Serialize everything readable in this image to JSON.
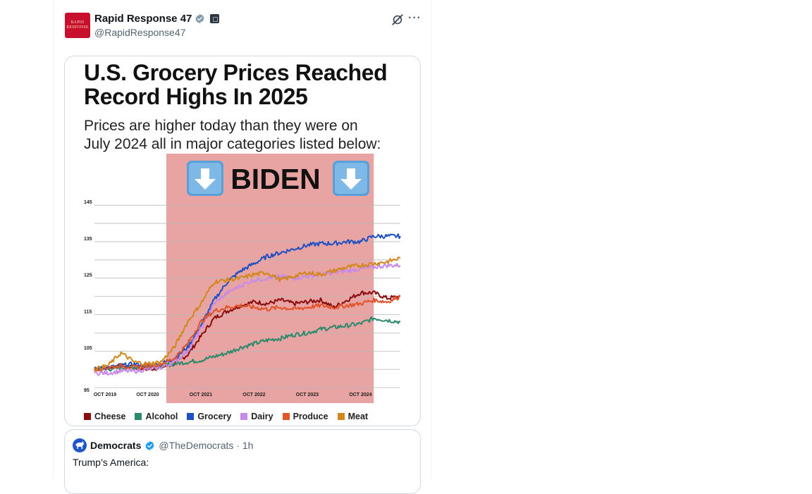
{
  "post": {
    "display_name": "Rapid Response 47",
    "handle": "@RapidResponse47",
    "avatar_text": "RAPID RESPONSE",
    "icons": [
      "verified-badge-icon",
      "government-badge-icon",
      "grok-icon",
      "more-icon"
    ]
  },
  "image": {
    "headline_line1": "U.S. Grocery Prices Reached",
    "headline_line2": "Record Highs In 2025",
    "subhead_line1": "Prices are higher today than they were on",
    "subhead_line2": "July 2024 all in major categories listed below:",
    "banner_text": "BIDEN",
    "banner_icon": "down-arrow-emoji-icon",
    "highlight_color": "#e8a3a3"
  },
  "chart_data": {
    "type": "line",
    "x_ticks": [
      "OCT 2019",
      "OCT 2020",
      "OCT 2021",
      "OCT 2022",
      "OCT 2023",
      "OCT 2024"
    ],
    "y_ticks": [
      "95",
      "105",
      "115",
      "125",
      "135",
      "145"
    ],
    "ylim": [
      95,
      146
    ],
    "xlim": [
      2019.75,
      2025.5
    ],
    "highlight_range": [
      2021.1,
      2025.0
    ],
    "grid": true,
    "legend": "bottom",
    "series": [
      {
        "name": "Cheese",
        "color": "#8b0e0e",
        "x": [
          2019.75,
          2020.0,
          2020.25,
          2020.5,
          2020.75,
          2021.0,
          2021.25,
          2021.5,
          2021.75,
          2022.0,
          2022.25,
          2022.5,
          2022.75,
          2023.0,
          2023.25,
          2023.5,
          2023.75,
          2024.0,
          2024.25,
          2024.5,
          2024.75,
          2025.0,
          2025.25,
          2025.5
        ],
        "y": [
          100,
          100.5,
          101,
          100.5,
          100,
          100.5,
          101.5,
          104,
          109,
          114,
          116,
          117.5,
          118.5,
          118,
          119,
          118,
          118.5,
          119,
          117,
          119,
          121,
          121,
          119.5,
          120
        ]
      },
      {
        "name": "Alcohol",
        "color": "#2a8a6a",
        "x": [
          2019.75,
          2020.0,
          2020.25,
          2020.5,
          2020.75,
          2021.0,
          2021.25,
          2021.5,
          2021.75,
          2022.0,
          2022.25,
          2022.5,
          2022.75,
          2023.0,
          2023.25,
          2023.5,
          2023.75,
          2024.0,
          2024.25,
          2024.5,
          2024.75,
          2025.0,
          2025.25,
          2025.5
        ],
        "y": [
          100,
          100,
          100.5,
          100.5,
          101,
          101,
          101.5,
          102,
          102.5,
          103.5,
          104.5,
          106,
          107,
          108,
          108.5,
          109.5,
          110,
          111,
          111.5,
          112,
          112.5,
          114,
          113.5,
          113
        ]
      },
      {
        "name": "Grocery",
        "color": "#1f4fc4",
        "x": [
          2019.75,
          2020.0,
          2020.25,
          2020.5,
          2020.75,
          2021.0,
          2021.25,
          2021.5,
          2021.75,
          2022.0,
          2022.25,
          2022.5,
          2022.75,
          2023.0,
          2023.25,
          2023.5,
          2023.75,
          2024.0,
          2024.25,
          2024.5,
          2024.75,
          2025.0,
          2025.25,
          2025.5
        ],
        "y": [
          100,
          100.5,
          101,
          101.5,
          101,
          101.5,
          103,
          106,
          112,
          119,
          124,
          127,
          129,
          131,
          132,
          133,
          134,
          134.5,
          134.5,
          135,
          135,
          136.5,
          136.5,
          136.5
        ]
      },
      {
        "name": "Dairy",
        "color": "#c78be6",
        "x": [
          2019.75,
          2020.0,
          2020.25,
          2020.5,
          2020.75,
          2021.0,
          2021.25,
          2021.5,
          2021.75,
          2022.0,
          2022.25,
          2022.5,
          2022.75,
          2023.0,
          2023.25,
          2023.5,
          2023.75,
          2024.0,
          2024.25,
          2024.5,
          2024.75,
          2025.0,
          2025.25,
          2025.5
        ],
        "y": [
          99,
          99,
          99.5,
          99.5,
          100,
          100.5,
          102,
          105,
          111,
          118,
          121,
          123,
          124.5,
          125,
          125.5,
          125,
          125.5,
          126,
          126.5,
          127,
          127.5,
          128,
          128.5,
          128.5
        ]
      },
      {
        "name": "Produce",
        "color": "#e0542a",
        "x": [
          2019.75,
          2020.0,
          2020.25,
          2020.5,
          2020.75,
          2021.0,
          2021.25,
          2021.5,
          2021.75,
          2022.0,
          2022.25,
          2022.5,
          2022.75,
          2023.0,
          2023.25,
          2023.5,
          2023.75,
          2024.0,
          2024.25,
          2024.5,
          2024.75,
          2025.0,
          2025.25,
          2025.5
        ],
        "y": [
          100,
          100.5,
          101,
          100.5,
          101,
          101.5,
          103,
          107,
          113,
          116,
          117,
          117.5,
          117,
          116.5,
          117,
          116.5,
          117,
          117.5,
          117,
          117.5,
          118,
          119,
          118.5,
          120
        ]
      },
      {
        "name": "Meat",
        "color": "#d2871a",
        "x": [
          2019.75,
          2020.0,
          2020.25,
          2020.5,
          2020.75,
          2021.0,
          2021.25,
          2021.5,
          2021.75,
          2022.0,
          2022.25,
          2022.5,
          2022.75,
          2023.0,
          2023.25,
          2023.5,
          2023.75,
          2024.0,
          2024.25,
          2024.5,
          2024.75,
          2025.0,
          2025.25,
          2025.5
        ],
        "y": [
          100,
          101,
          104.5,
          102,
          101.5,
          102,
          106,
          113,
          118,
          124,
          124.5,
          125,
          126,
          126.5,
          124.5,
          125.5,
          126.5,
          126,
          127,
          128,
          128.5,
          129,
          129.5,
          130.5
        ]
      }
    ]
  },
  "quote": {
    "display_name": "Democrats",
    "handle_time": "@TheDemocrats · 1h",
    "text": "Trump’s America:"
  }
}
